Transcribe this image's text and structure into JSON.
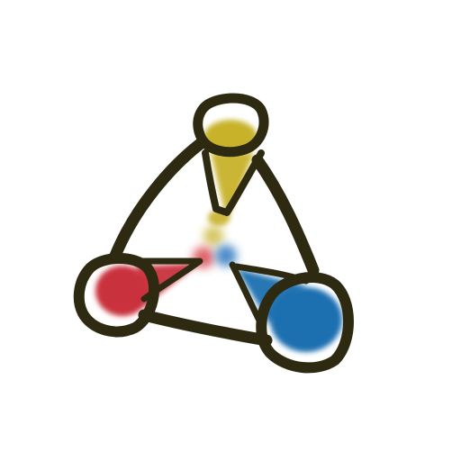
{
  "image": {
    "description": "",
    "background_color": "#ffffff",
    "outline_color": "#2e2a12",
    "nodes": [
      {
        "name": "top",
        "fill_color": "#c8b22a"
      },
      {
        "name": "left",
        "fill_color": "#c9303c"
      },
      {
        "name": "right",
        "fill_color": "#1f6fb0"
      }
    ],
    "center_dots": [
      "#c8b22a",
      "#d9484f",
      "#2f79bf"
    ]
  }
}
